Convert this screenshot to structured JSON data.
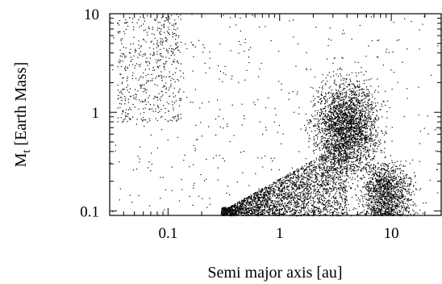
{
  "chart_data": {
    "type": "scatter",
    "title": "",
    "xlabel": "Semi major axis [au]",
    "ylabel_main": "M",
    "ylabel_sub": "t",
    "ylabel_rest": " [Earth Mass]",
    "xscale": "log",
    "yscale": "log",
    "xlim": [
      0.03,
      28
    ],
    "ylim": [
      0.09,
      10
    ],
    "grid": false,
    "legend": "none",
    "marker_color": "#000000",
    "x_ticks": [
      {
        "value": 0.1,
        "label": "0.1"
      },
      {
        "value": 1,
        "label": "1"
      },
      {
        "value": 10,
        "label": "10"
      }
    ],
    "y_ticks": [
      {
        "value": 0.1,
        "label": "0.1"
      },
      {
        "value": 1,
        "label": "1"
      },
      {
        "value": 10,
        "label": "10"
      }
    ],
    "point_clusters": [
      {
        "name": "inner-massive",
        "x_range": [
          0.035,
          0.13
        ],
        "y_range": [
          0.8,
          10
        ],
        "approx_count": 500
      },
      {
        "name": "main-band",
        "x_range": [
          0.3,
          4
        ],
        "y_range": [
          0.09,
          0.45
        ],
        "approx_count": 2600
      },
      {
        "name": "central-cloud",
        "x_range": [
          1.5,
          12
        ],
        "y_range": [
          0.15,
          5
        ],
        "approx_count": 2600
      },
      {
        "name": "outer-low",
        "x_range": [
          4,
          28
        ],
        "y_range": [
          0.09,
          0.35
        ],
        "approx_count": 1300
      },
      {
        "name": "sparse-background",
        "x_range": [
          0.03,
          28
        ],
        "y_range": [
          0.09,
          10
        ],
        "approx_count": 450
      }
    ]
  }
}
